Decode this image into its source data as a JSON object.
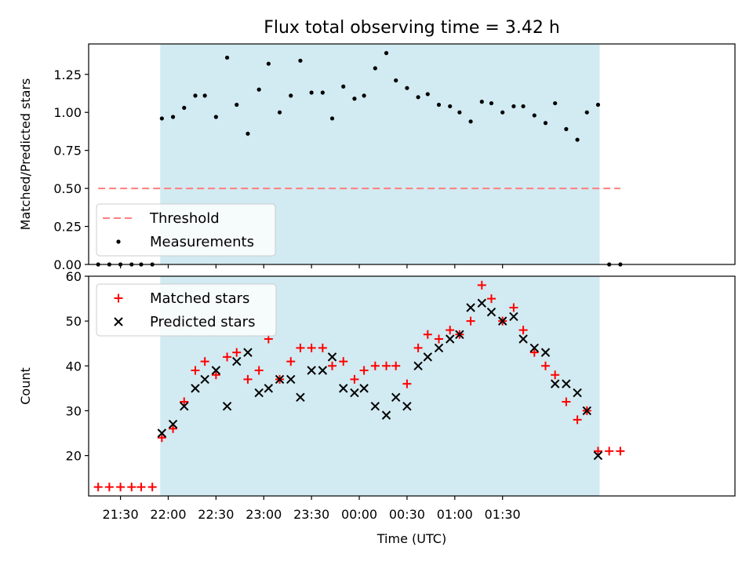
{
  "chart_data": [
    {
      "type": "scatter",
      "title": "Flux total observing time = 3.42 h",
      "xlabel": "",
      "ylabel": "Matched/Predicted stars",
      "xlim": [
        -50,
        356
      ],
      "ylim": [
        0,
        1.45
      ],
      "xunit": "minutes relative to 22:00 UTC",
      "y_ticks": [
        "0.00",
        "0.25",
        "0.50",
        "0.75",
        "1.00",
        "1.25"
      ],
      "y_tick_values": [
        0,
        0.25,
        0.5,
        0.75,
        1.0,
        1.25
      ],
      "shaded_region": {
        "x0": -5,
        "x1": 271,
        "color": "#add8e6"
      },
      "threshold": {
        "name": "Threshold",
        "y": 0.5,
        "x0": -44,
        "x1": 284,
        "color": "#ff7f7f"
      },
      "legend": {
        "placement": "lower-left",
        "entries": [
          "Threshold",
          "Measurements"
        ]
      },
      "series": [
        {
          "name": "Measurements",
          "color": "#000000",
          "marker": "dot",
          "x": [
            -44,
            -37,
            -30,
            -23,
            -17,
            -10,
            -4,
            3,
            10,
            17,
            23,
            30,
            37,
            43,
            50,
            57,
            63,
            70,
            77,
            83,
            90,
            97,
            103,
            110,
            117,
            123,
            130,
            137,
            143,
            150,
            157,
            163,
            170,
            177,
            183,
            190,
            197,
            203,
            210,
            217,
            223,
            230,
            237,
            243,
            250,
            257,
            263,
            270,
            277,
            284
          ],
          "y": [
            0,
            0,
            0,
            0,
            0,
            0,
            0.96,
            0.97,
            1.03,
            1.11,
            1.11,
            0.97,
            1.36,
            1.05,
            0.86,
            1.15,
            1.32,
            1.0,
            1.11,
            1.34,
            1.13,
            1.13,
            0.96,
            1.17,
            1.09,
            1.11,
            1.29,
            1.39,
            1.21,
            1.16,
            1.1,
            1.12,
            1.05,
            1.04,
            1.0,
            0.94,
            1.07,
            1.06,
            1.0,
            1.04,
            1.04,
            0.98,
            0.93,
            1.06,
            0.89,
            0.82,
            1.0,
            1.05,
            0,
            0
          ]
        }
      ]
    },
    {
      "type": "scatter",
      "title": "",
      "xlabel": "Time (UTC)",
      "ylabel": "Count",
      "xlim": [
        -50,
        356
      ],
      "ylim": [
        11,
        60
      ],
      "y_ticks": [
        "20",
        "30",
        "40",
        "50",
        "60"
      ],
      "y_tick_values": [
        20,
        30,
        40,
        50,
        60
      ],
      "x_ticks": [
        "21:30",
        "22:00",
        "22:30",
        "23:00",
        "23:30",
        "00:00",
        "00:30",
        "01:00",
        "01:30"
      ],
      "x_tick_values": [
        -30,
        0,
        30,
        60,
        90,
        120,
        150,
        180,
        210
      ],
      "shaded_region": {
        "x0": -5,
        "x1": 271,
        "color": "#add8e6"
      },
      "legend": {
        "placement": "upper-left",
        "entries": [
          "Matched stars",
          "Predicted stars"
        ]
      },
      "series": [
        {
          "name": "Matched stars",
          "color": "#ff0000",
          "marker": "plus",
          "x": [
            -44,
            -37,
            -30,
            -23,
            -17,
            -10,
            -4,
            3,
            10,
            17,
            23,
            30,
            37,
            43,
            50,
            57,
            63,
            70,
            77,
            83,
            90,
            97,
            103,
            110,
            117,
            123,
            130,
            137,
            143,
            150,
            157,
            163,
            170,
            177,
            183,
            190,
            197,
            203,
            210,
            217,
            223,
            230,
            237,
            243,
            250,
            257,
            263,
            270,
            277,
            284
          ],
          "y": [
            13,
            13,
            13,
            13,
            13,
            13,
            24,
            26,
            32,
            39,
            41,
            38,
            42,
            43,
            37,
            39,
            46,
            37,
            41,
            44,
            44,
            44,
            40,
            41,
            37,
            39,
            40,
            40,
            40,
            36,
            44,
            47,
            46,
            48,
            47,
            50,
            58,
            55,
            50,
            53,
            48,
            43,
            40,
            38,
            32,
            28,
            30,
            21,
            21,
            21
          ]
        },
        {
          "name": "Predicted stars",
          "color": "#000000",
          "marker": "x",
          "x": [
            -4,
            3,
            10,
            17,
            23,
            30,
            37,
            43,
            50,
            57,
            63,
            70,
            77,
            83,
            90,
            97,
            103,
            110,
            117,
            123,
            130,
            137,
            143,
            150,
            157,
            163,
            170,
            177,
            183,
            190,
            197,
            203,
            210,
            217,
            223,
            230,
            237,
            243,
            250,
            257,
            263,
            270
          ],
          "y": [
            25,
            27,
            31,
            35,
            37,
            39,
            31,
            41,
            43,
            34,
            35,
            37,
            37,
            33,
            39,
            39,
            42,
            35,
            34,
            35,
            31,
            29,
            33,
            31,
            40,
            42,
            44,
            46,
            47,
            53,
            54,
            52,
            50,
            51,
            46,
            44,
            43,
            36,
            36,
            34,
            30,
            20
          ]
        }
      ]
    }
  ]
}
